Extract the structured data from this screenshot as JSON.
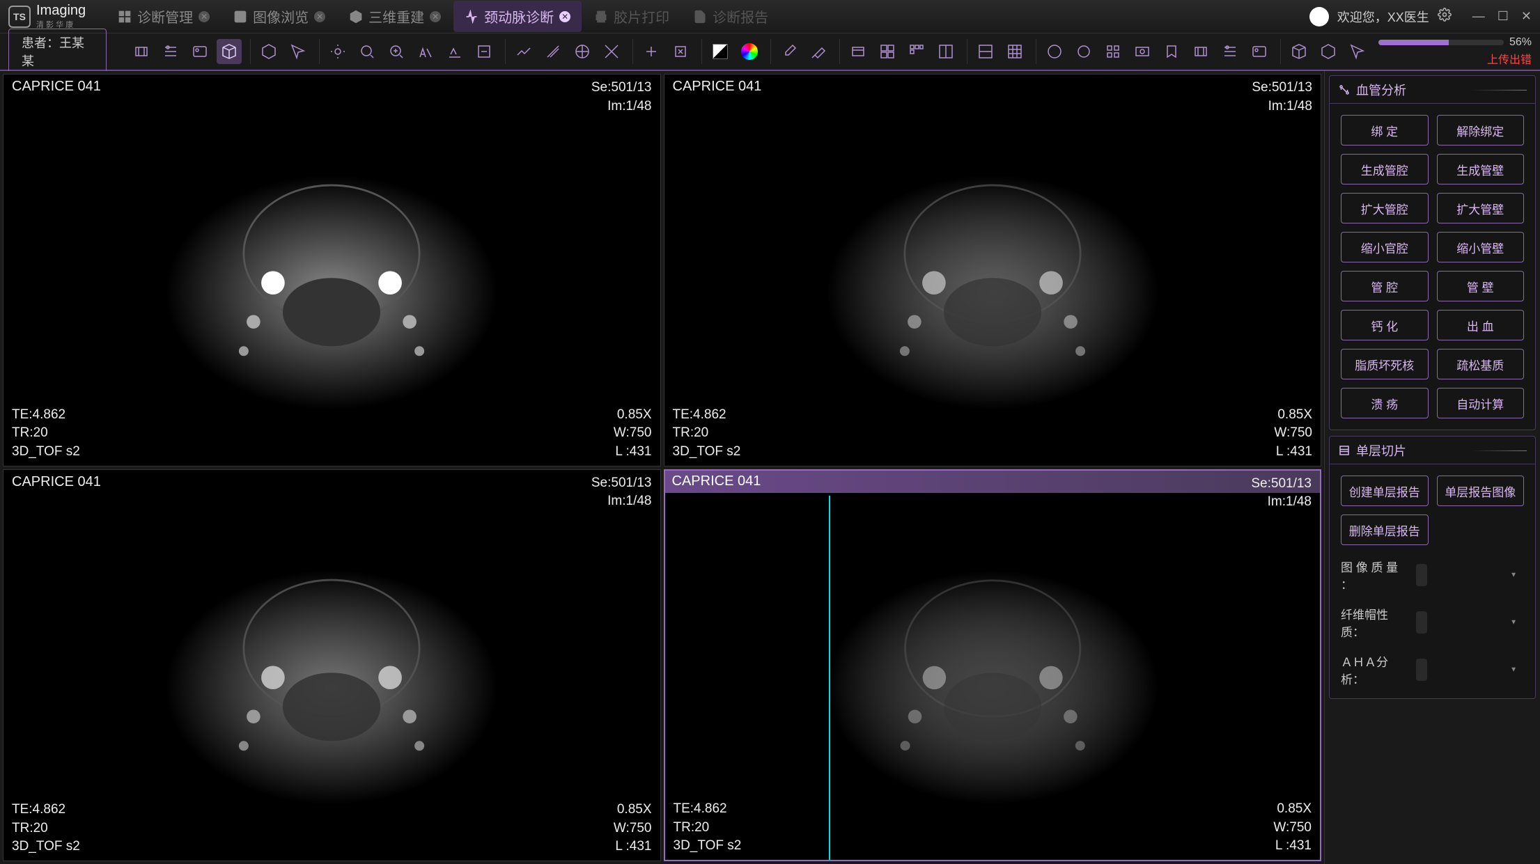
{
  "app": {
    "logo_text": "Imaging",
    "logo_sub": "清 影 华 康"
  },
  "tabs": [
    {
      "label": "诊断管理",
      "closable": true,
      "active": false,
      "icon": "grid"
    },
    {
      "label": "图像浏览",
      "closable": true,
      "active": false,
      "icon": "image"
    },
    {
      "label": "三维重建",
      "closable": true,
      "active": false,
      "icon": "cube"
    },
    {
      "label": "颈动脉诊断",
      "closable": true,
      "active": true,
      "icon": "pulse"
    },
    {
      "label": "胶片打印",
      "closable": false,
      "active": false,
      "disabled": true,
      "icon": "print"
    },
    {
      "label": "诊断报告",
      "closable": false,
      "active": false,
      "disabled": true,
      "icon": "doc"
    }
  ],
  "user": {
    "welcome": "欢迎您，XX医生"
  },
  "patient": {
    "label": "患者：王某某"
  },
  "progress": {
    "percent": 56,
    "text": "56%",
    "error": "上传出错"
  },
  "viewport_common": {
    "title": "CAPRICE   041",
    "se": "Se:501/13",
    "im": "Im:1/48",
    "te": "TE:4.862",
    "tr": "TR:20",
    "seq": "3D_TOF  s2",
    "zoom": "0.85X",
    "ww": "W:750",
    "wl": "L :431"
  },
  "viewports": [
    {
      "active": false,
      "header_style": "plain"
    },
    {
      "active": false,
      "header_style": "plain"
    },
    {
      "active": false,
      "header_style": "plain"
    },
    {
      "active": true,
      "header_style": "purple",
      "cyan_line": true
    }
  ],
  "panels": {
    "vessel": {
      "title": "血管分析",
      "buttons": [
        "绑 定",
        "解除绑定",
        "生成管腔",
        "生成管壁",
        "扩大管腔",
        "扩大管壁",
        "缩小官腔",
        "缩小管壁",
        "管 腔",
        "管 壁",
        "钙 化",
        "出 血",
        "脂质坏死核",
        "疏松基质",
        "溃 疡",
        "自动计算"
      ]
    },
    "slice": {
      "title": "单层切片",
      "buttons": [
        "创建单层报告",
        "单层报告图像",
        "删除单层报告"
      ],
      "fields": [
        {
          "label": "图 像 质 量 ："
        },
        {
          "label": "纤维帽性质："
        },
        {
          "label": "ＡＨＡ分析："
        }
      ]
    }
  },
  "colors": {
    "bg": "#0a0a0a",
    "panel": "#1a1a1a",
    "accent": "#8a6aaa",
    "accent_light": "#d8b8f0",
    "error": "#ff4444",
    "cyan": "#00e0e0"
  }
}
